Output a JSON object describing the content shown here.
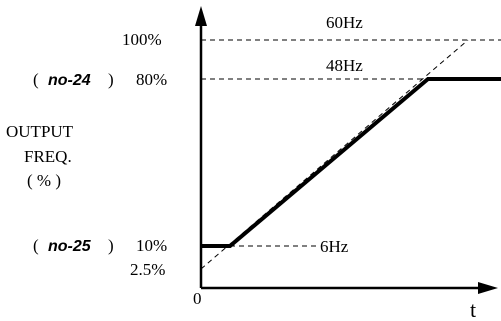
{
  "y_ticks": {
    "top": "100%",
    "upper": "80%",
    "lower": "10%",
    "bottom": "2.5%"
  },
  "params": {
    "upper_open": "(",
    "upper_name": "no-24",
    "upper_close": ")",
    "lower_open": "(",
    "lower_name": "no-25",
    "lower_close": ")"
  },
  "y_title": {
    "line1": "OUTPUT",
    "line2": "FREQ.",
    "line3": "( % )"
  },
  "annotations": {
    "max_freq": "60Hz",
    "upper_freq": "48Hz",
    "lower_freq": "6Hz"
  },
  "axes": {
    "origin": "0",
    "x_label": "t"
  },
  "colors": {
    "ink": "#000000"
  }
}
